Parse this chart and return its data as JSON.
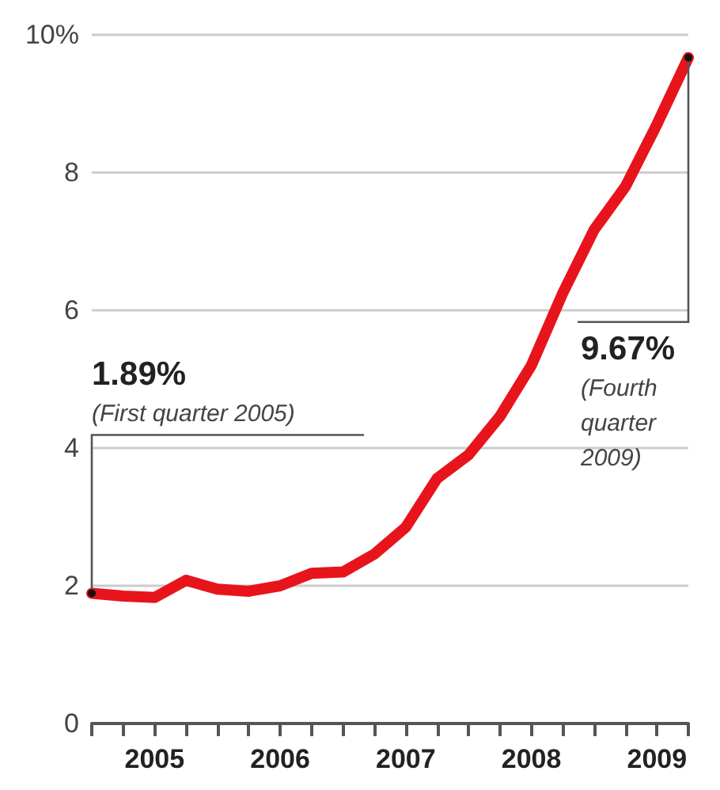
{
  "chart_data": {
    "type": "line",
    "x": [
      2005,
      2005.25,
      2005.5,
      2005.75,
      2006,
      2006.25,
      2006.5,
      2006.75,
      2007,
      2007.25,
      2007.5,
      2007.75,
      2008,
      2008.25,
      2008.5,
      2008.75,
      2009,
      2009.25,
      2009.5,
      2009.75
    ],
    "series": [
      {
        "color": "#e8141c",
        "values": [
          1.89,
          1.85,
          1.83,
          2.08,
          1.95,
          1.92,
          2.0,
          2.18,
          2.2,
          2.46,
          2.85,
          3.56,
          3.9,
          4.46,
          5.2,
          6.25,
          7.17,
          7.8,
          8.7,
          9.67
        ]
      }
    ],
    "xlim": [
      2005,
      2009.75
    ],
    "xticks": [
      {
        "value": 2005,
        "label": null
      },
      {
        "value": 2005.25,
        "label": null
      },
      {
        "value": 2005.5,
        "label": "2005"
      },
      {
        "value": 2005.75,
        "label": null
      },
      {
        "value": 2006,
        "label": null
      },
      {
        "value": 2006.25,
        "label": null
      },
      {
        "value": 2006.5,
        "label": "2006"
      },
      {
        "value": 2006.75,
        "label": null
      },
      {
        "value": 2007,
        "label": null
      },
      {
        "value": 2007.25,
        "label": null
      },
      {
        "value": 2007.5,
        "label": "2007"
      },
      {
        "value": 2007.75,
        "label": null
      },
      {
        "value": 2008,
        "label": null
      },
      {
        "value": 2008.25,
        "label": null
      },
      {
        "value": 2008.5,
        "label": "2008"
      },
      {
        "value": 2008.75,
        "label": null
      },
      {
        "value": 2009,
        "label": null
      },
      {
        "value": 2009.25,
        "label": null
      },
      {
        "value": 2009.5,
        "label": "2009"
      },
      {
        "value": 2009.75,
        "label": null
      }
    ],
    "ylim": [
      0,
      10
    ],
    "yticks": [
      0,
      2,
      4,
      6,
      8,
      {
        "value": 10,
        "label": "10%"
      }
    ],
    "grid": "y",
    "line_style": "solid",
    "annotations": [
      {
        "text": "1.89%",
        "x": 2005,
        "y": 1.89
      },
      "(First quarter 2005)",
      {
        "text": "9.67%",
        "x": 2009.75,
        "y": 9.67
      },
      "(Fourth quarter 2009)"
    ]
  }
}
